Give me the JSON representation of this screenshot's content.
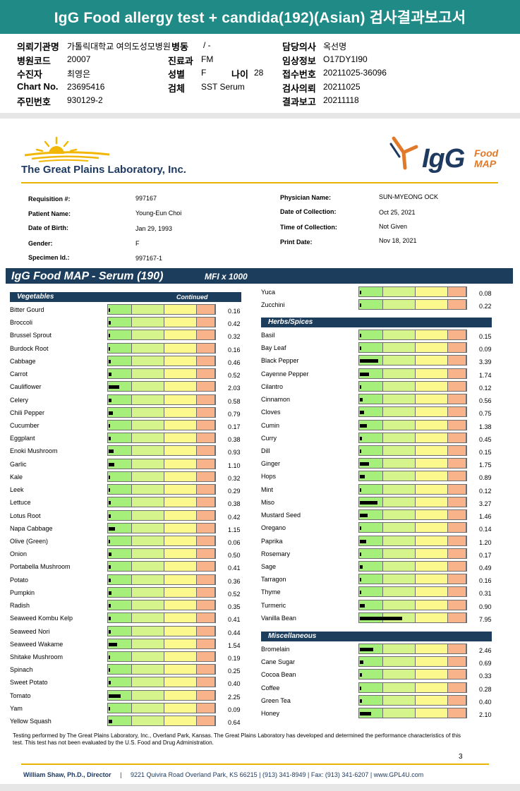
{
  "banner_title": "IgG Food allergy test + candida(192)(Asian) 검사결과보고서",
  "header": {
    "institution_label": "의뢰기관명",
    "institution_value": "가톨릭대학교 여의도성모병원",
    "ward_label": "병동",
    "ward_value": "/ -",
    "doctor_label": "담당의사",
    "doctor_value": "옥선명",
    "hospital_code_label": "병원코드",
    "hospital_code_value": "20007",
    "dept_label": "진료과",
    "dept_value": "FM",
    "clinical_label": "임상정보",
    "clinical_value": "O17DY1I90",
    "examinee_label": "수진자",
    "examinee_value": "최영은",
    "sex_label": "성별",
    "sex_value": "F",
    "age_label": "나이",
    "age_value": "28",
    "receipt_no_label": "접수번호",
    "receipt_no_value": "20211025-36096",
    "chart_label": "Chart No.",
    "chart_value": "23695416",
    "specimen_label": "검체",
    "specimen_value": "SST Serum",
    "request_date_label": "검사의뢰",
    "request_date_value": "20211025",
    "id_label": "주민번호",
    "id_value": "930129-2",
    "report_date_label": "결과보고",
    "report_date_value": "20211118"
  },
  "lab": {
    "name": "The Great Plains Laboratory, Inc.",
    "product_big": "IgG",
    "product_small_1": "Food",
    "product_small_2": "MAP"
  },
  "patient": {
    "requisition_label": "Requisition #:",
    "requisition_value": "997167",
    "name_label": "Patient Name:",
    "name_value": "Young-Eun Choi",
    "dob_label": "Date of Birth:",
    "dob_value": "Jan 29, 1993",
    "gender_label": "Gender:",
    "gender_value": "F",
    "specimen_label": "Specimen Id.:",
    "specimen_value": "997167-1",
    "physician_label": "Physician Name:",
    "physician_value": "SUN-MYEONG OCK",
    "collection_date_label": "Date of Collection:",
    "collection_date_value": "Oct 25, 2021",
    "collection_time_label": "Time of Collection:",
    "collection_time_value": "Not Given",
    "print_date_label": "Print Date:",
    "print_date_value": "Nov 18, 2021"
  },
  "section": {
    "title": "IgG Food MAP - Serum (190)",
    "unit": "MFI x 1000"
  },
  "categories": {
    "vegetables": "Vegetables",
    "continued": "Continued",
    "herbs": "Herbs/Spices",
    "misc": "Miscellaneous"
  },
  "chart_data": {
    "type": "bar",
    "unit": "MFI x 1000",
    "scale_max": 20,
    "left_column": [
      {
        "name": "Bitter Gourd",
        "value": "0.16"
      },
      {
        "name": "Broccoli",
        "value": "0.42"
      },
      {
        "name": "Brussel Sprout",
        "value": "0.32"
      },
      {
        "name": "Burdock Root",
        "value": "0.16"
      },
      {
        "name": "Cabbage",
        "value": "0.46"
      },
      {
        "name": "Carrot",
        "value": "0.52"
      },
      {
        "name": "Cauliflower",
        "value": "2.03"
      },
      {
        "name": "Celery",
        "value": "0.58"
      },
      {
        "name": "Chili Pepper",
        "value": "0.79"
      },
      {
        "name": "Cucumber",
        "value": "0.17"
      },
      {
        "name": "Eggplant",
        "value": "0.38"
      },
      {
        "name": "Enoki Mushroom",
        "value": "0.93"
      },
      {
        "name": "Garlic",
        "value": "1.10"
      },
      {
        "name": "Kale",
        "value": "0.32"
      },
      {
        "name": "Leek",
        "value": "0.29"
      },
      {
        "name": "Lettuce",
        "value": "0.38"
      },
      {
        "name": "Lotus Root",
        "value": "0.42"
      },
      {
        "name": "Napa Cabbage",
        "value": "1.15"
      },
      {
        "name": "Olive (Green)",
        "value": "0.06"
      },
      {
        "name": "Onion",
        "value": "0.50"
      },
      {
        "name": "Portabella Mushroom",
        "value": "0.41"
      },
      {
        "name": "Potato",
        "value": "0.36"
      },
      {
        "name": "Pumpkin",
        "value": "0.52"
      },
      {
        "name": "Radish",
        "value": "0.35"
      },
      {
        "name": "Seaweed Kombu Kelp",
        "value": "0.41"
      },
      {
        "name": "Seaweed Nori",
        "value": "0.44"
      },
      {
        "name": "Seaweed Wakame",
        "value": "1.54"
      },
      {
        "name": "Shitake Mushroom",
        "value": "0.19"
      },
      {
        "name": "Spinach",
        "value": "0.25"
      },
      {
        "name": "Sweet Potato",
        "value": "0.40"
      },
      {
        "name": "Tomato",
        "value": "2.25"
      },
      {
        "name": "Yam",
        "value": "0.09"
      },
      {
        "name": "Yellow Squash",
        "value": "0.64"
      }
    ],
    "right_top": [
      {
        "name": "Yuca",
        "value": "0.08"
      },
      {
        "name": "Zucchini",
        "value": "0.22"
      }
    ],
    "herbs": [
      {
        "name": "Basil",
        "value": "0.15"
      },
      {
        "name": "Bay Leaf",
        "value": "0.09"
      },
      {
        "name": "Black Pepper",
        "value": "3.39"
      },
      {
        "name": "Cayenne Pepper",
        "value": "1.74"
      },
      {
        "name": "Cilantro",
        "value": "0.12"
      },
      {
        "name": "Cinnamon",
        "value": "0.56"
      },
      {
        "name": "Cloves",
        "value": "0.75"
      },
      {
        "name": "Cumin",
        "value": "1.38"
      },
      {
        "name": "Curry",
        "value": "0.45"
      },
      {
        "name": "Dill",
        "value": "0.15"
      },
      {
        "name": "Ginger",
        "value": "1.75"
      },
      {
        "name": "Hops",
        "value": "0.89"
      },
      {
        "name": "Mint",
        "value": "0.12"
      },
      {
        "name": "Miso",
        "value": "3.27"
      },
      {
        "name": "Mustard Seed",
        "value": "1.46"
      },
      {
        "name": "Oregano",
        "value": "0.14"
      },
      {
        "name": "Paprika",
        "value": "1.20"
      },
      {
        "name": "Rosemary",
        "value": "0.17"
      },
      {
        "name": "Sage",
        "value": "0.49"
      },
      {
        "name": "Tarragon",
        "value": "0.16"
      },
      {
        "name": "Thyme",
        "value": "0.31"
      },
      {
        "name": "Turmeric",
        "value": "0.90"
      },
      {
        "name": "Vanilla Bean",
        "value": "7.95"
      }
    ],
    "misc": [
      {
        "name": "Bromelain",
        "value": "2.46"
      },
      {
        "name": "Cane Sugar",
        "value": "0.69"
      },
      {
        "name": "Cocoa Bean",
        "value": "0.33"
      },
      {
        "name": "Coffee",
        "value": "0.28"
      },
      {
        "name": "Green Tea",
        "value": "0.40"
      },
      {
        "name": "Honey",
        "value": "2.10"
      }
    ]
  },
  "disclaimer": "Testing performed by The Great Plains Laboratory, Inc., Overland Park, Kansas. The Great Plains Laboratory has developed and determined the performance characteristics of this test. This test has not been evaluated by the U.S. Food and Drug Administration.",
  "page_number": "3",
  "footer": {
    "director": "William Shaw, Ph.D., Director",
    "separator": "|",
    "contact": "9221 Quivira Road Overland Park, KS 66215 | (913) 341-8949 | Fax: (913) 341-6207 | www.GPL4U.com"
  }
}
